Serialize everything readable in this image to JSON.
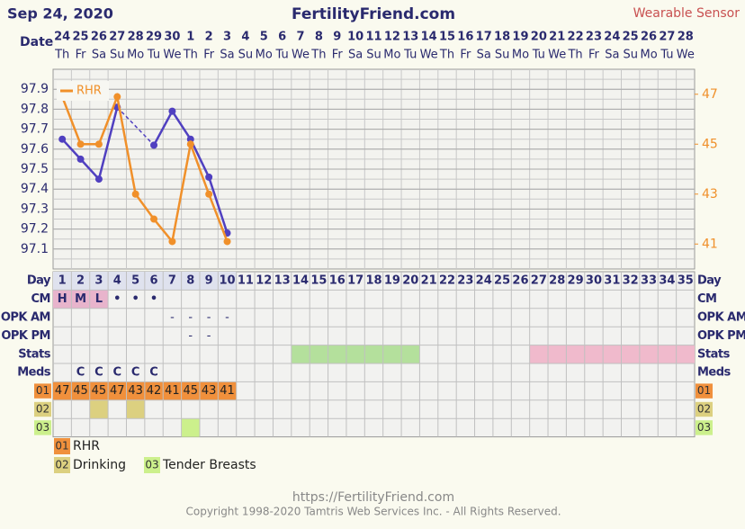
{
  "header": {
    "date": "Sep 24, 2020",
    "site": "FertilityFriend.com",
    "badge": "Wearable Sensor"
  },
  "dates": {
    "label": "Date",
    "days": [
      24,
      25,
      26,
      27,
      28,
      29,
      30,
      1,
      2,
      3,
      4,
      5,
      6,
      7,
      8,
      9,
      10,
      11,
      12,
      13,
      14,
      15,
      16,
      17,
      18,
      19,
      20,
      21,
      22,
      23,
      24,
      25,
      26,
      27,
      28
    ],
    "weekdays": [
      "Th",
      "Fr",
      "Sa",
      "Su",
      "Mo",
      "Tu",
      "We",
      "Th",
      "Fr",
      "Sa",
      "Su",
      "Mo",
      "Tu",
      "We",
      "Th",
      "Fr",
      "Sa",
      "Su",
      "Mo",
      "Tu",
      "We",
      "Th",
      "Fr",
      "Sa",
      "Su",
      "Mo",
      "Tu",
      "We",
      "Th",
      "Fr",
      "Sa",
      "Su",
      "Mo",
      "Tu",
      "We"
    ]
  },
  "chart_data": {
    "type": "line",
    "x": [
      1,
      2,
      3,
      4,
      5,
      6,
      7,
      8,
      9,
      10
    ],
    "xlim": [
      0.5,
      35.5
    ],
    "ylim": [
      97.0,
      98.0
    ],
    "yticks": [
      97.1,
      97.2,
      97.3,
      97.4,
      97.5,
      97.6,
      97.7,
      97.8,
      97.9
    ],
    "y2lim": [
      40,
      48
    ],
    "y2ticks": [
      41,
      43,
      45,
      47
    ],
    "series": [
      {
        "color": "#5040c0",
        "values": [
          97.65,
          97.55,
          97.45,
          97.81,
          null,
          97.62,
          97.79,
          97.65,
          97.46,
          97.18
        ]
      },
      {
        "name": "RHR",
        "color": "#f0902a",
        "axis": "y2",
        "values": [
          46.9,
          45,
          45,
          46.9,
          43,
          42,
          41.1,
          45,
          43,
          41.1
        ]
      }
    ]
  },
  "table": {
    "rows": [
      {
        "label": "Day",
        "cells": [
          1,
          2,
          3,
          4,
          5,
          6,
          7,
          8,
          9,
          10,
          11,
          12,
          13,
          14,
          15,
          16,
          17,
          18,
          19,
          20,
          21,
          22,
          23,
          24,
          25,
          26,
          27,
          28,
          29,
          30,
          31,
          32,
          33,
          34,
          35
        ],
        "fills": [
          {
            "from": 1,
            "to": 10,
            "color": "#dfe2ee"
          }
        ]
      },
      {
        "label": "CM",
        "cells": {
          "1": "H",
          "2": "M",
          "3": "L",
          "4": "•",
          "5": "•",
          "6": "•"
        },
        "fills": [
          {
            "from": 1,
            "to": 3,
            "color": "#e8b4cc"
          }
        ]
      },
      {
        "label": "OPK AM",
        "cells": {
          "7": "-",
          "8": "-",
          "9": "-",
          "10": "-"
        }
      },
      {
        "label": "OPK PM",
        "cells": {
          "8": "-",
          "9": "-"
        }
      },
      {
        "label": "Stats",
        "fills": [
          {
            "from": 14,
            "to": 20,
            "color": "#b4e09c"
          },
          {
            "from": 27,
            "to": 35,
            "color": "#f0bacc"
          }
        ]
      },
      {
        "label": "Meds",
        "cells": {
          "2": "C",
          "3": "C",
          "4": "C",
          "5": "C",
          "6": "C"
        }
      },
      {
        "label": "01",
        "label_color": "#f0903c",
        "cells": {
          "1": 47,
          "2": 45,
          "3": 45,
          "4": 47,
          "5": 43,
          "6": 42,
          "7": 41,
          "8": 45,
          "9": 43,
          "10": 41
        },
        "fills": [
          {
            "from": 1,
            "to": 10,
            "color": "#f0903c"
          }
        ]
      },
      {
        "label": "02",
        "label_color": "#dcd080",
        "fills": [
          {
            "from": 3,
            "to": 3,
            "color": "#dcd080"
          },
          {
            "from": 5,
            "to": 5,
            "color": "#dcd080"
          }
        ]
      },
      {
        "label": "03",
        "label_color": "#ccf08c",
        "fills": [
          {
            "from": 8,
            "to": 8,
            "color": "#ccf08c"
          }
        ]
      }
    ]
  },
  "legend": [
    {
      "code": "01",
      "text": "RHR",
      "color": "#f0903c"
    },
    {
      "code": "02",
      "text": "Drinking",
      "color": "#dcd080"
    },
    {
      "code": "03",
      "text": "Tender Breasts",
      "color": "#ccf08c"
    }
  ],
  "footer": {
    "url": "https://FertilityFriend.com",
    "copyright": "Copyright 1998-2020 Tamtris Web Services Inc. - All Rights Reserved."
  }
}
